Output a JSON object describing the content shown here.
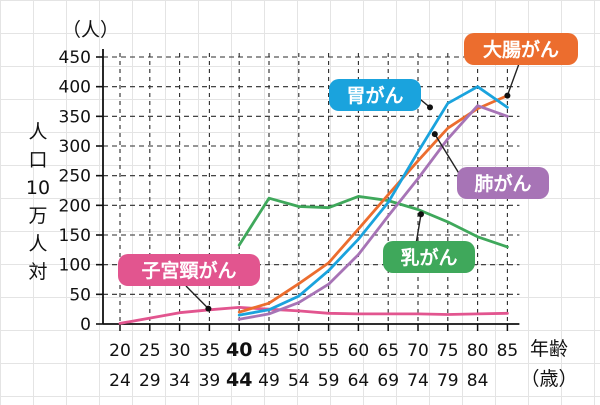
{
  "chart_data": {
    "type": "line",
    "ylabel_unit": "（人）",
    "ylabel": "人口10万人対",
    "xlabel": "年齢（歳）",
    "ylim": [
      0,
      450
    ],
    "yticks": [
      0,
      50,
      100,
      150,
      200,
      250,
      300,
      350,
      400,
      450
    ],
    "categories": [
      {
        "top": "20",
        "bottom": "24",
        "bold": false
      },
      {
        "top": "25",
        "bottom": "29",
        "bold": false
      },
      {
        "top": "30",
        "bottom": "34",
        "bold": false
      },
      {
        "top": "35",
        "bottom": "39",
        "bold": false
      },
      {
        "top": "40",
        "bottom": "44",
        "bold": true
      },
      {
        "top": "45",
        "bottom": "49",
        "bold": false
      },
      {
        "top": "50",
        "bottom": "54",
        "bold": false
      },
      {
        "top": "55",
        "bottom": "59",
        "bold": false
      },
      {
        "top": "60",
        "bottom": "64",
        "bold": false
      },
      {
        "top": "65",
        "bottom": "69",
        "bold": false
      },
      {
        "top": "70",
        "bottom": "74",
        "bold": false
      },
      {
        "top": "75",
        "bottom": "79",
        "bold": false
      },
      {
        "top": "80",
        "bottom": "84",
        "bold": false
      },
      {
        "top": "85",
        "bottom": "",
        "bold": false
      }
    ],
    "grid": true,
    "series": [
      {
        "name": "子宮頸がん",
        "color": "#e2558f",
        "values": [
          1,
          10,
          19,
          24,
          28,
          25,
          22,
          18,
          17,
          17,
          17,
          16,
          17,
          18
        ]
      },
      {
        "name": "乳がん",
        "color": "#3fa85b",
        "values": [
          null,
          null,
          null,
          null,
          133,
          212,
          198,
          196,
          215,
          208,
          193,
          172,
          147,
          130
        ]
      },
      {
        "name": "大腸がん",
        "color": "#ec6d2e",
        "values": [
          null,
          null,
          null,
          null,
          20,
          35,
          68,
          103,
          160,
          218,
          275,
          330,
          363,
          385
        ]
      },
      {
        "name": "胃がん",
        "color": "#1aa3dd",
        "values": [
          null,
          null,
          null,
          null,
          15,
          24,
          47,
          90,
          143,
          205,
          290,
          372,
          400,
          365
        ]
      },
      {
        "name": "肺がん",
        "color": "#a774b6",
        "values": [
          null,
          null,
          null,
          null,
          8,
          17,
          36,
          67,
          117,
          182,
          245,
          312,
          368,
          350
        ]
      }
    ]
  }
}
